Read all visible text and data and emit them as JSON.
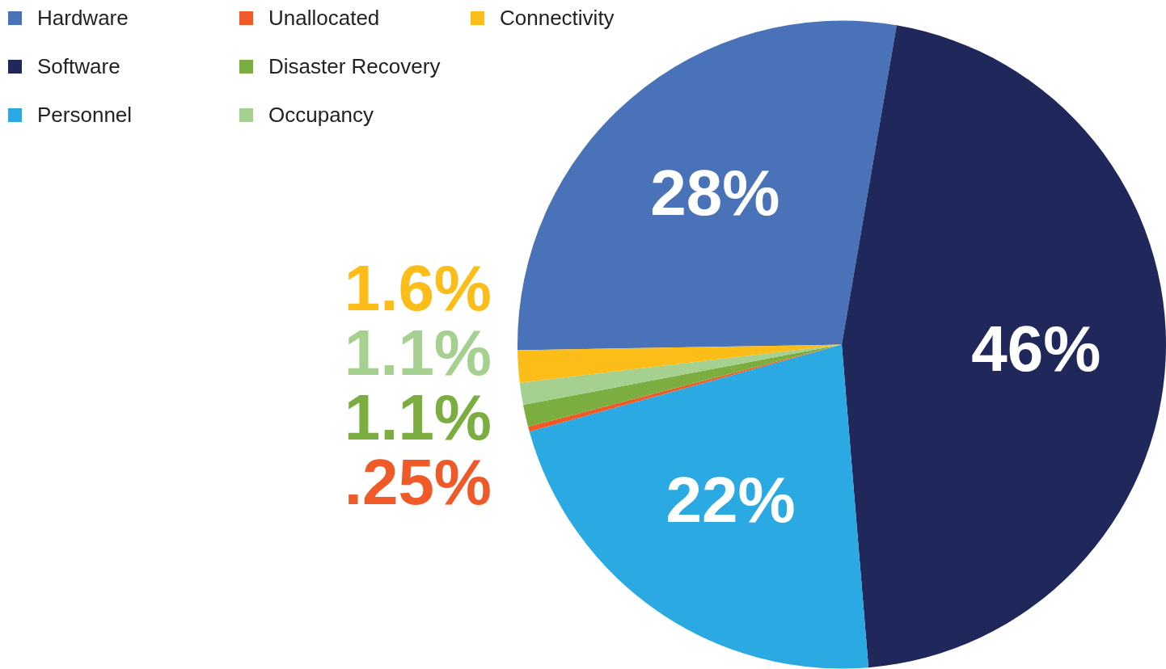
{
  "chart_data": {
    "type": "pie",
    "categories": [
      "Hardware",
      "Software",
      "Personnel",
      "Unallocated",
      "Disaster Recovery",
      "Occupancy",
      "Connectivity"
    ],
    "values": [
      28,
      46,
      22,
      0.25,
      1.1,
      1.1,
      1.6
    ],
    "colors": [
      "#4a72b8",
      "#20275a",
      "#2aa9e2",
      "#f05a28",
      "#7cad41",
      "#a6d08f",
      "#fdbd18"
    ],
    "value_labels": [
      "28%",
      "46%",
      "22%",
      ".25%",
      "1.1%",
      "1.1%",
      "1.6%"
    ],
    "legend": "top left"
  }
}
